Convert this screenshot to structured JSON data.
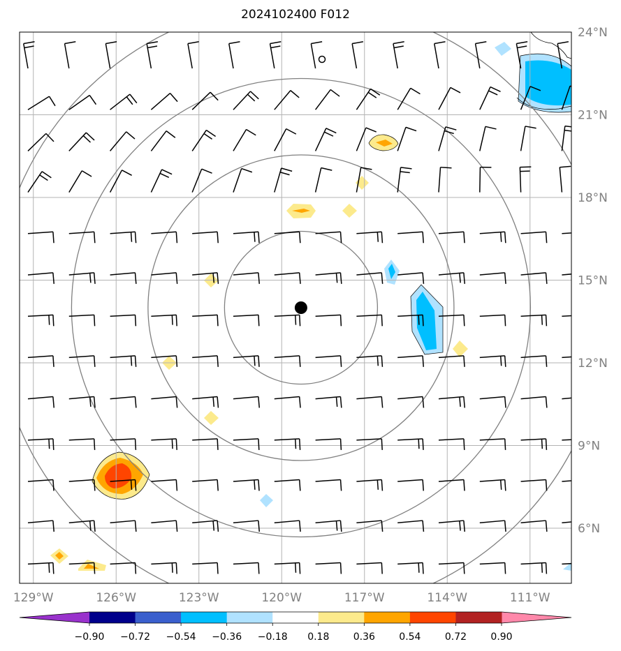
{
  "title": "2024102400 F012",
  "map": {
    "lon_range": [
      -129.5,
      -109.5
    ],
    "lat_range": [
      4,
      24
    ],
    "lon_ticks": [
      -129,
      -126,
      -123,
      -120,
      -117,
      -114,
      -111
    ],
    "lat_ticks": [
      6,
      9,
      12,
      15,
      18,
      21,
      24
    ],
    "lon_labels": [
      "129°W",
      "126°W",
      "123°W",
      "120°W",
      "117°W",
      "114°W",
      "111°W"
    ],
    "lat_labels": [
      "6°N",
      "9°N",
      "12°N",
      "15°N",
      "18°N",
      "21°N",
      "24°N"
    ],
    "storm_center": {
      "lon": -119.3,
      "lat": 14
    },
    "range_rings": 4,
    "gridlines": true
  },
  "colorbar": {
    "ticks": [
      "−0.90",
      "−0.72",
      "−0.54",
      "−0.36",
      "−0.18",
      "0.18",
      "0.36",
      "0.54",
      "0.72",
      "0.90"
    ],
    "colors": [
      "#9932cc",
      "#00008b",
      "#3a5fcd",
      "#00bfff",
      "#b0e2ff",
      "#ffffff",
      "#fcea8c",
      "#ffa500",
      "#ff4500",
      "#b22222",
      "#ff88aa"
    ],
    "extend": "both"
  },
  "field_blobs": [
    {
      "name": "ne-corner-negative",
      "color": "#00bfff",
      "level": -0.36
    },
    {
      "name": "east-negative-band",
      "color": "#00bfff",
      "level": -0.36
    },
    {
      "name": "sw-positive-maximum",
      "color": "#ff4500",
      "level": 0.72
    },
    {
      "name": "north-positive-patch",
      "color": "#fcea8c",
      "level": 0.36
    }
  ]
}
